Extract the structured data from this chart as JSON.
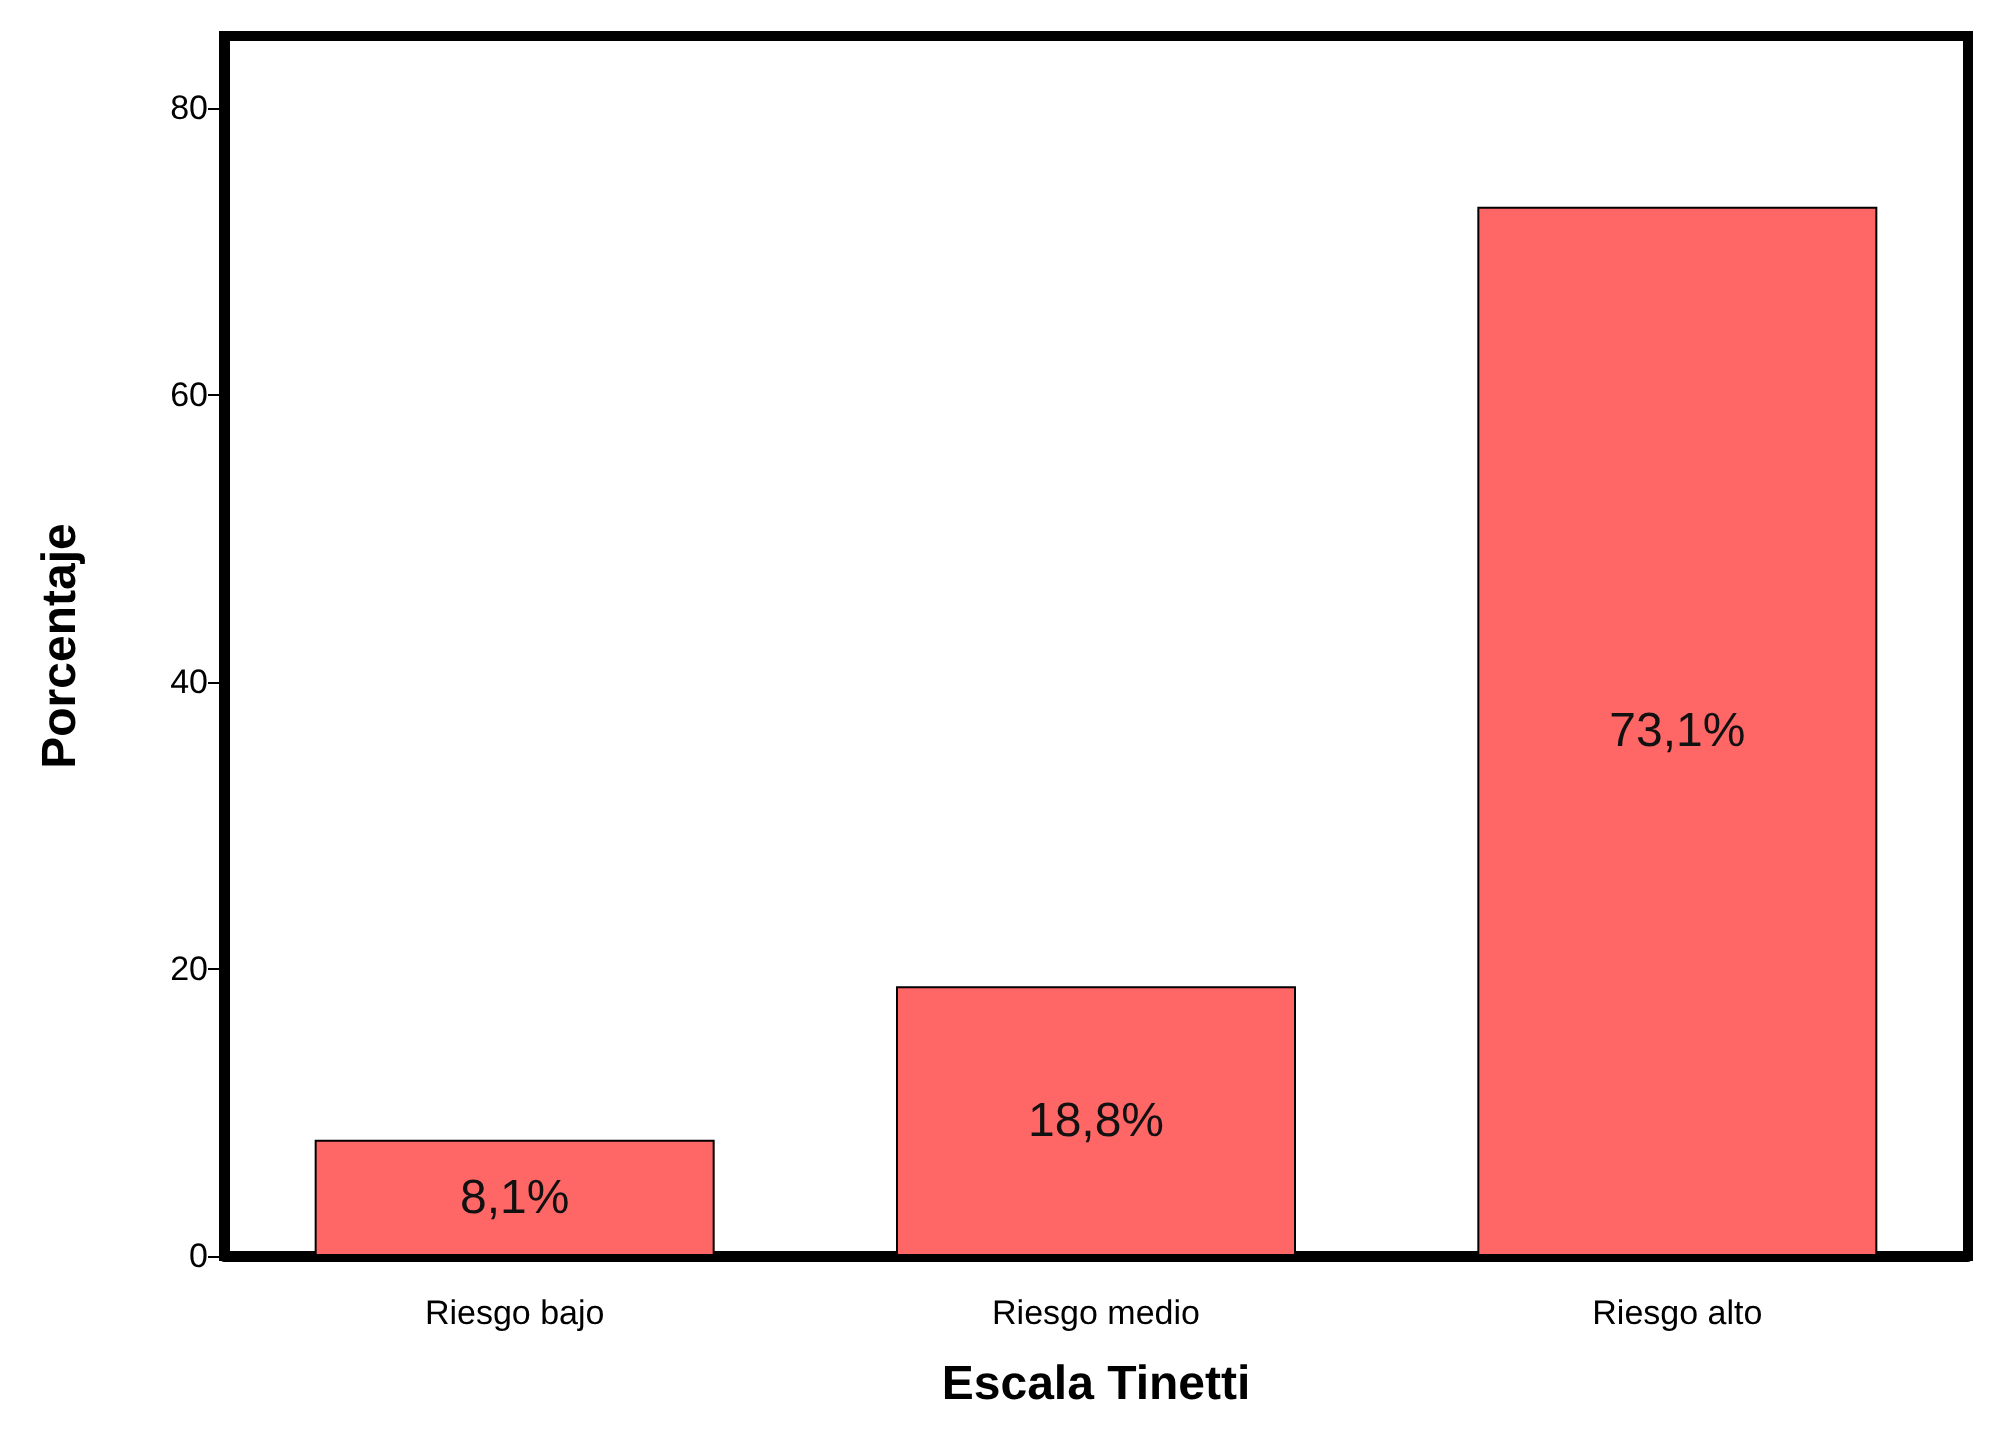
{
  "chart_data": {
    "type": "bar",
    "xlabel": "Escala Tinetti",
    "ylabel": "Porcentaje",
    "categories": [
      "Riesgo bajo",
      "Riesgo medio",
      "Riesgo alto"
    ],
    "values": [
      8.1,
      18.8,
      73.1
    ],
    "value_labels": [
      "8,1%",
      "18,8%",
      "73,1%"
    ],
    "color": "#ff6666",
    "ylim": [
      0,
      85
    ],
    "yticks": [
      0,
      20,
      40,
      60,
      80
    ],
    "grid": false
  }
}
